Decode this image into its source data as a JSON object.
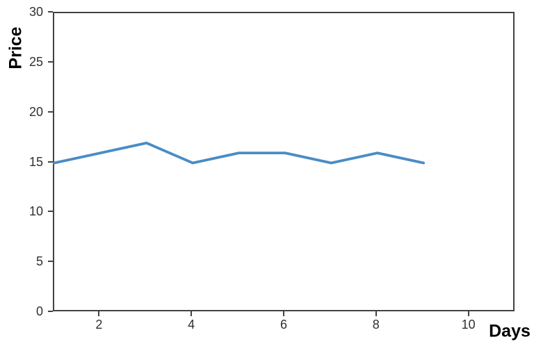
{
  "chart_data": {
    "type": "line",
    "title": "",
    "xlabel": "Days",
    "ylabel": "Price",
    "x": [
      1,
      2,
      3,
      4,
      5,
      6,
      7,
      8,
      9
    ],
    "series": [
      {
        "name": "Price",
        "values": [
          15,
          16,
          17,
          15,
          16,
          16,
          15,
          16,
          15
        ],
        "color": "#4a8cc6",
        "line_width": 3.8
      }
    ],
    "xlim": [
      1,
      11
    ],
    "ylim": [
      0,
      30
    ],
    "xticks": [
      2,
      4,
      6,
      8,
      10
    ],
    "yticks": [
      0,
      5,
      10,
      15,
      20,
      25,
      30
    ],
    "grid": false,
    "legend_position": "none"
  },
  "colors": {
    "axis": "#424242",
    "tick_label": "#303030",
    "axis_label": "#000000",
    "background": "#ffffff"
  }
}
